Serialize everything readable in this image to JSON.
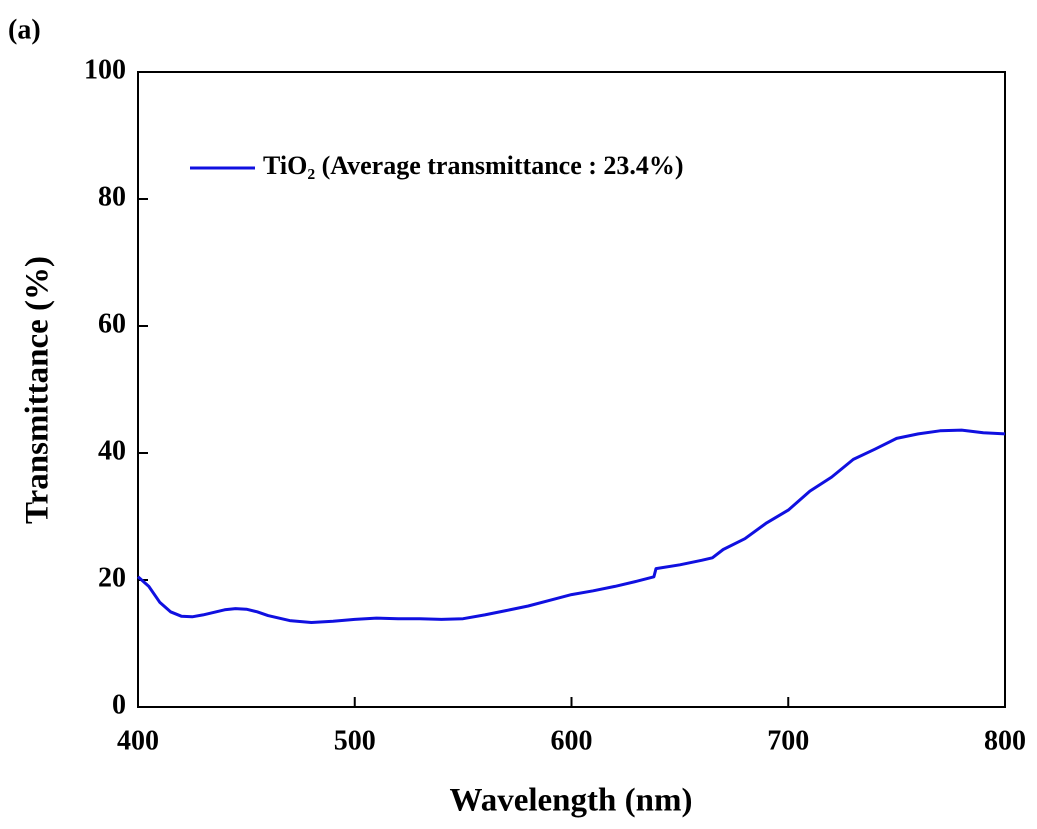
{
  "chart_data": {
    "type": "line",
    "annotation": "(a)",
    "xlabel": "Wavelength (nm)",
    "ylabel": "Transmittance (%)",
    "x": [
      400,
      405,
      410,
      415,
      420,
      425,
      430,
      440,
      445,
      450,
      455,
      460,
      470,
      480,
      490,
      500,
      510,
      520,
      530,
      540,
      550,
      560,
      570,
      580,
      590,
      600,
      610,
      620,
      630,
      638,
      639,
      650,
      660,
      665,
      670,
      680,
      690,
      700,
      710,
      720,
      730,
      740,
      750,
      760,
      770,
      780,
      790,
      800
    ],
    "series": [
      {
        "name": "TiO₂ (Average transmittance : 23.4%)",
        "color": "#1010e0",
        "values": [
          20.5,
          19,
          16.5,
          15,
          14.3,
          14.2,
          14.5,
          15.3,
          15.5,
          15.4,
          15,
          14.4,
          13.6,
          13.3,
          13.5,
          13.8,
          14,
          13.9,
          13.9,
          13.8,
          13.9,
          14.5,
          15.2,
          15.9,
          16.8,
          17.7,
          18.3,
          19,
          19.8,
          20.5,
          21.8,
          22.4,
          23.1,
          23.5,
          24.8,
          26.5,
          29,
          31,
          34,
          36.2,
          39,
          40.6,
          42.3,
          43,
          43.5,
          43.6,
          43.2,
          43
        ]
      }
    ],
    "xlim": [
      400,
      800
    ],
    "xticks": [
      400,
      500,
      600,
      700,
      800
    ],
    "ylim": [
      0,
      100
    ],
    "yticks": [
      0,
      20,
      40,
      60,
      80,
      100
    ],
    "legend": "upper left"
  }
}
